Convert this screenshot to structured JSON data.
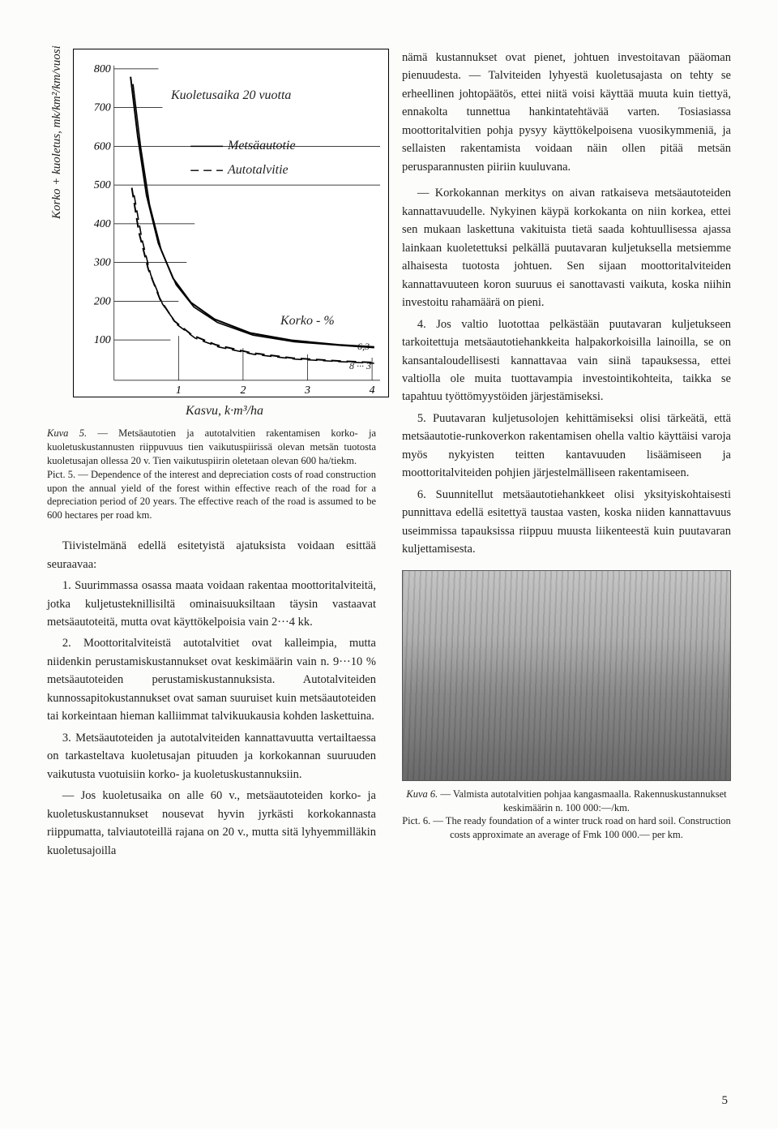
{
  "chart": {
    "title_annot": "Kuoletusaika 20 vuotta",
    "legend1": "Metsäautotie",
    "legend2": "Autotalvitie",
    "korko_label": "Korko - %",
    "line_end_upper": "6,3",
    "line_end_lower": "8 ··· 3",
    "ylabel": "Korko + kuoletus, mk/km²/km/vuosi",
    "xlabel_line2": "Kasvu, k·m³/ha",
    "xticks": [
      "1",
      "2",
      "3",
      "4"
    ],
    "yticks": [
      "100",
      "200",
      "300",
      "400",
      "500",
      "600",
      "700",
      "800"
    ],
    "ylim": [
      0,
      850
    ],
    "xlim": [
      0,
      4.5
    ],
    "grid_color": "#000000",
    "bg": "#ffffff",
    "series_upper_solid": {
      "x": [
        0.28,
        0.4,
        0.55,
        0.75,
        1.0,
        1.3,
        1.7,
        2.3,
        3.0,
        3.8,
        4.4
      ],
      "y": [
        820,
        660,
        500,
        370,
        275,
        210,
        165,
        128,
        108,
        96,
        90
      ]
    },
    "series_upper_inner": {
      "x": [
        0.32,
        0.45,
        0.6,
        0.8,
        1.05,
        1.35,
        1.75,
        2.35,
        3.05,
        3.85,
        4.4
      ],
      "y": [
        800,
        630,
        475,
        350,
        258,
        198,
        156,
        122,
        104,
        94,
        88
      ]
    },
    "series_lower_outer": {
      "x": [
        0.3,
        0.42,
        0.58,
        0.78,
        1.02,
        1.32,
        1.72,
        2.32,
        3.02,
        3.82,
        4.4
      ],
      "y": [
        520,
        400,
        300,
        218,
        160,
        122,
        96,
        74,
        60,
        52,
        48
      ]
    },
    "series_lower_inner": {
      "x": [
        0.34,
        0.47,
        0.62,
        0.82,
        1.07,
        1.37,
        1.77,
        2.37,
        3.07,
        3.87,
        4.4
      ],
      "y": [
        500,
        382,
        285,
        206,
        150,
        114,
        90,
        70,
        57,
        50,
        46
      ]
    }
  },
  "caption5": {
    "line1_badge": "Kuva 5.",
    "line1_rest": " — Metsäautotien ja autotalvitien rakentamisen korko- ja kuoletuskustannusten riippuvuus tien vaikutuspiirissä olevan metsän tuotosta kuoletusajan ollessa 20 v. Tien vaikutuspiirin oletetaan olevan 600 ha/tiekm.",
    "line2_badge": "Pict. 5.",
    "line2_rest": " — Dependence of the interest and depreciation costs of road construction upon the annual yield of the forest within effective reach of the road for a depreciation period of 20 years. The effective reach of the road is assumed to be 600 hectares per road km."
  },
  "left_paras": {
    "intro": "Tiivistelmänä edellä esitetyistä ajatuksista voidaan esittää seuraavaa:",
    "p1": "1. Suurimmassa osassa maata voidaan rakentaa moottoritalviteitä, jotka kuljetusteknillisiltä ominaisuuksiltaan täysin vastaavat metsäautoteitä, mutta ovat käyttökelpoisia vain 2···4 kk.",
    "p2": "2. Moottoritalviteistä autotalvitiet ovat kalleimpia, mutta niidenkin perustamiskustannukset ovat keskimäärin vain n. 9···10 % metsäautoteiden perustamiskustannuksista. Autotalviteiden kunnossapitokustannukset ovat saman suuruiset kuin metsäautoteiden tai korkeintaan hieman kalliimmat talvikuukausia kohden laskettuina.",
    "p3": "3. Metsäautoteiden ja autotalviteiden kannattavuutta vertailtaessa on tarkasteltava kuoletusajan pituuden ja korkokannan suuruuden vaikutusta vuotuisiin korko- ja kuoletuskustannuksiin.",
    "p3b": "— Jos kuoletusaika on alle 60 v., metsäautoteiden korko- ja kuoletuskustannukset nousevat hyvin jyrkästi korkokannasta riippumatta, talviautoteillä rajana on 20 v., mutta sitä lyhyemmilläkin kuoletusajoilla"
  },
  "right_paras": {
    "p_cont": "nämä kustannukset ovat pienet, johtuen investoitavan pääoman pienuudesta. — Talviteiden lyhyestä kuoletusajasta on tehty se erheellinen johtopäätös, ettei niitä voisi käyttää muuta kuin tiettyä, ennakolta tunnettua hankintatehtävää varten. Tosiasiassa moottoritalvitien pohja pysyy käyttökelpoisena vuosikymmeniä, ja sellaisten rakentamista voidaan näin ollen pitää metsän perusparannusten piiriin kuuluvana.",
    "p_korko": "— Korkokannan merkitys on aivan ratkaiseva metsäautoteiden kannattavuudelle. Nykyinen käypä korkokanta on niin korkea, ettei sen mukaan laskettuna vakituista tietä saada kohtuullisessa ajassa lainkaan kuoletettuksi pelkällä puutavaran kuljetuksella metsiemme alhaisesta tuotosta johtuen. Sen sijaan moottoritalviteiden kannattavuuteen koron suuruus ei sanottavasti vaikuta, koska niihin investoitu rahamäärä on pieni.",
    "p4": "4. Jos valtio luotottaa pelkästään puutavaran kuljetukseen tarkoitettuja metsäautotiehankkeita halpakorkoisilla lainoilla, se on kansantaloudellisesti kannattavaa vain siinä tapauksessa, ettei valtiolla ole muita tuottavampia investointikohteita, taikka se tapahtuu työttömyystöiden järjestämiseksi.",
    "p5": "5. Puutavaran kuljetusolojen kehittämiseksi olisi tärkeätä, että metsäautotie-runkoverkon rakentamisen ohella valtio käyttäisi varoja myös nykyisten teitten kantavuuden lisäämiseen ja moottoritalviteiden pohjien järjestelmälliseen rakentamiseen.",
    "p6": "6. Suunnitellut metsäautotiehankkeet olisi yksityiskohtaisesti punnittava edellä esitettyä taustaa vasten, koska niiden kannattavuus useimmissa tapauksissa riippuu muusta liikenteestä kuin puutavaran kuljettamisesta."
  },
  "caption6": {
    "line1_badge": "Kuva 6.",
    "line1_rest": " — Valmista autotalvitien pohjaa kangasmaalla. Rakennuskustannukset keskimäärin n. 100 000:—/km.",
    "line2_badge": "Pict. 6.",
    "line2_rest": " — The ready foundation of a winter truck road on hard soil. Construction costs approximate an average of Fmk 100 000.— per km."
  },
  "pagenum": "5"
}
